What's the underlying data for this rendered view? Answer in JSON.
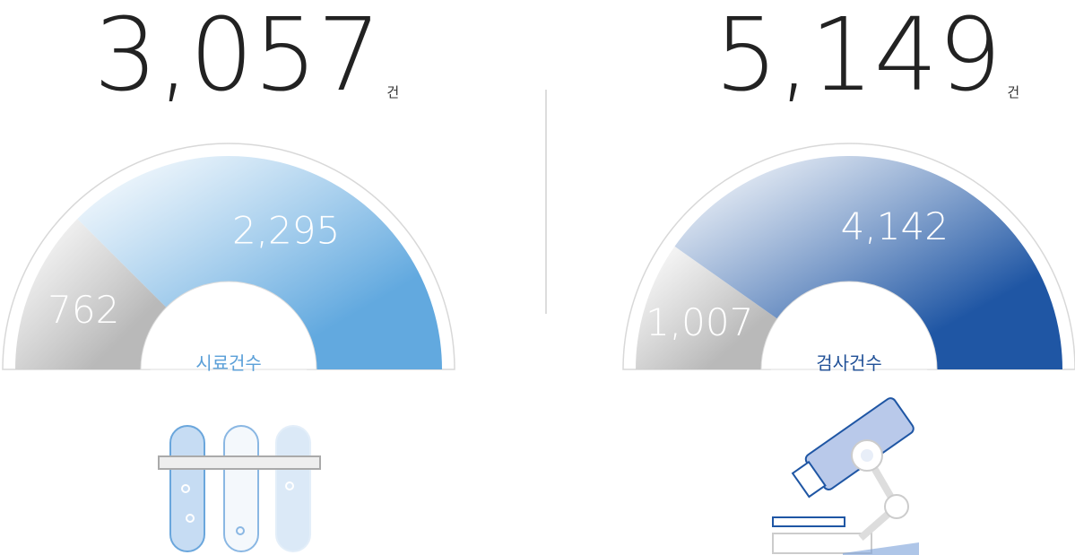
{
  "chart_data": [
    {
      "type": "half-donut",
      "title": "시료건수",
      "total": "3,057",
      "unit": "건",
      "values": [
        762,
        2295
      ],
      "value_labels": [
        "762",
        "2,295"
      ],
      "colors": [
        "#b9b9b9",
        "#62a9df"
      ],
      "title_color": "#5a9fd8"
    },
    {
      "type": "half-donut",
      "title": "검사건수",
      "total": "5,149",
      "unit": "건",
      "values": [
        1007,
        4142
      ],
      "value_labels": [
        "1,007",
        "4,142"
      ],
      "colors": [
        "#b9b9b9",
        "#1f56a4"
      ],
      "title_color": "#1f4f96"
    }
  ]
}
